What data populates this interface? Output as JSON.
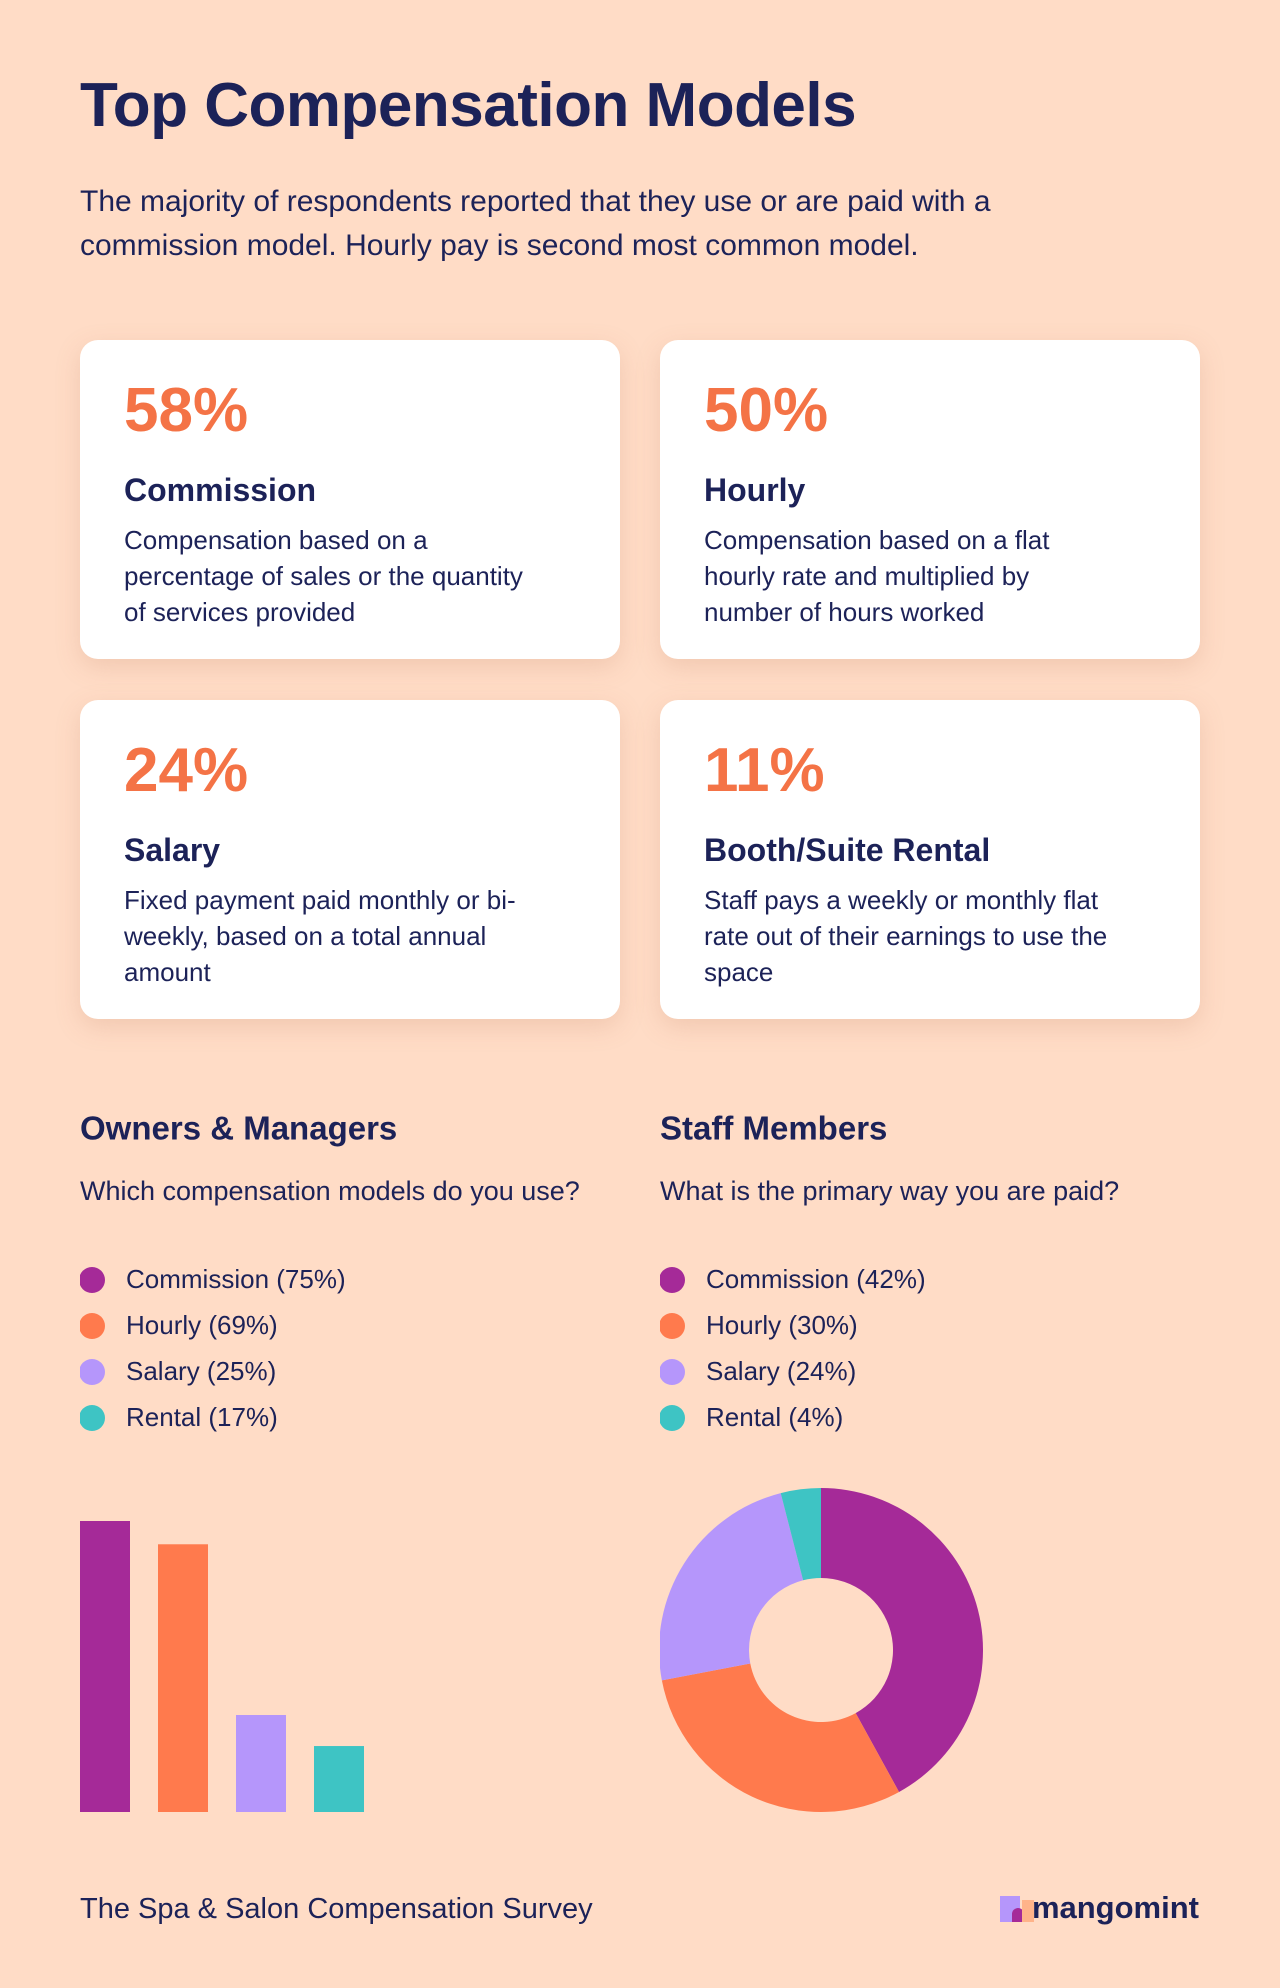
{
  "header": {
    "title": "Top Compensation Models",
    "subtitle": "The majority of respondents reported that they use or are paid with a commission model. Hourly pay is second most common model."
  },
  "cards": [
    {
      "value": "58%",
      "name": "Commission",
      "description": "Compensation based on a percentage of sales or the quantity of services provided"
    },
    {
      "value": "50%",
      "name": "Hourly",
      "description": "Compensation based on a flat hourly rate and multiplied by number of hours worked"
    },
    {
      "value": "24%",
      "name": "Salary",
      "description": "Fixed payment paid monthly or bi-weekly, based on a total annual amount"
    },
    {
      "value": "11%",
      "name": "Booth/Suite Rental",
      "description": "Staff pays a weekly or monthly flat rate out of their earnings to use the space"
    }
  ],
  "chart_data": [
    {
      "type": "bar",
      "title": "Owners & Managers",
      "subtitle": "Which compensation models do you use?",
      "categories": [
        "Commission (75%)",
        "Hourly (69%)",
        "Salary (25%)",
        "Rental (17%)"
      ],
      "values": [
        75,
        69,
        25,
        17
      ],
      "colors": [
        "#a52a98",
        "#ff7a4d",
        "#b596fb",
        "#3ec4c4"
      ]
    },
    {
      "type": "pie",
      "title": "Staff Members",
      "subtitle": "What is the primary way you are paid?",
      "categories": [
        "Commission (42%)",
        "Hourly (30%)",
        "Salary (24%)",
        "Rental (4%)"
      ],
      "values": [
        42,
        30,
        24,
        4
      ],
      "colors": [
        "#a52a98",
        "#ff7a4d",
        "#b596fb",
        "#3ec4c4"
      ]
    }
  ],
  "footer": {
    "source": "The Spa & Salon Compensation Survey",
    "brand": "mangomint"
  }
}
